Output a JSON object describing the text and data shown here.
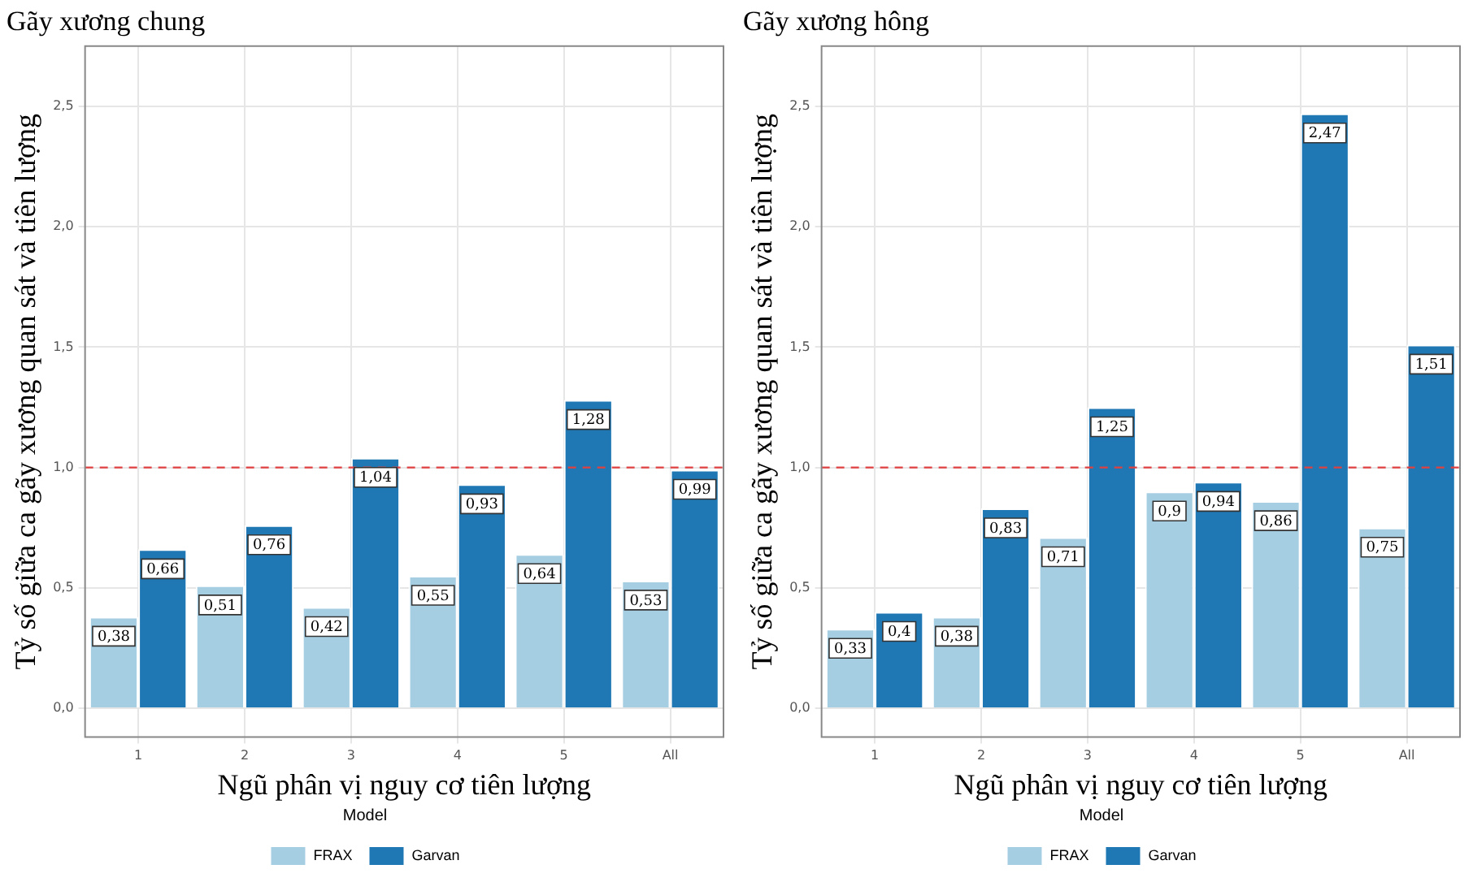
{
  "chart_data": [
    {
      "type": "bar",
      "title": "Gãy xương chung",
      "xlabel": "Ngũ phân vị nguy cơ tiên lượng",
      "ylabel": "Tỷ số giữa ca gãy xương quan sát và tiên lượng",
      "legend_title": "Model",
      "categories": [
        "1",
        "2",
        "3",
        "4",
        "5",
        "All"
      ],
      "series": [
        {
          "name": "FRAX",
          "color": "#a6cee3",
          "values": [
            0.38,
            0.51,
            0.42,
            0.55,
            0.64,
            0.53
          ],
          "value_labels": [
            "0,38",
            "0,51",
            "0,42",
            "0,55",
            "0,64",
            "0,53"
          ]
        },
        {
          "name": "Garvan",
          "color": "#1f78b4",
          "values": [
            0.66,
            0.76,
            1.04,
            0.93,
            1.28,
            0.99
          ],
          "value_labels": [
            "0,66",
            "0,76",
            "1,04",
            "0,93",
            "1,28",
            "0,99"
          ]
        }
      ],
      "ylim": [
        -0.12,
        2.75
      ],
      "yticks": [
        {
          "value": 0,
          "label": "0,0"
        },
        {
          "value": 0.5,
          "label": "0,5"
        },
        {
          "value": 1,
          "label": "1,0"
        },
        {
          "value": 1.5,
          "label": "1,5"
        },
        {
          "value": 2,
          "label": "2,0"
        },
        {
          "value": 2.5,
          "label": "2,5"
        }
      ],
      "ref_lines": [
        {
          "axis": "y",
          "value": 1,
          "color": "#e04040",
          "line_style": "dashed"
        }
      ],
      "grid": true,
      "legend": "bottom"
    },
    {
      "type": "bar",
      "title": "Gãy xương hông",
      "xlabel": "Ngũ phân vị nguy cơ tiên lượng",
      "ylabel": "Tỷ số giữa ca gãy xương quan sát và tiên lượng",
      "legend_title": "Model",
      "categories": [
        "1",
        "2",
        "3",
        "4",
        "5",
        "All"
      ],
      "series": [
        {
          "name": "FRAX",
          "color": "#a6cee3",
          "values": [
            0.33,
            0.38,
            0.71,
            0.9,
            0.86,
            0.75
          ],
          "value_labels": [
            "0,33",
            "0,38",
            "0,71",
            "0,9",
            "0,86",
            "0,75"
          ]
        },
        {
          "name": "Garvan",
          "color": "#1f78b4",
          "values": [
            0.4,
            0.83,
            1.25,
            0.94,
            2.47,
            1.51
          ],
          "value_labels": [
            "0,4",
            "0,83",
            "1,25",
            "0,94",
            "2,47",
            "1,51"
          ]
        }
      ],
      "ylim": [
        -0.12,
        2.75
      ],
      "yticks": [
        {
          "value": 0,
          "label": "0,0"
        },
        {
          "value": 0.5,
          "label": "0,5"
        },
        {
          "value": 1,
          "label": "1,0"
        },
        {
          "value": 1.5,
          "label": "1,5"
        },
        {
          "value": 2,
          "label": "2,0"
        },
        {
          "value": 2.5,
          "label": "2,5"
        }
      ],
      "ref_lines": [
        {
          "axis": "y",
          "value": 1,
          "color": "#e04040",
          "line_style": "dashed"
        }
      ],
      "grid": true,
      "legend": "bottom"
    }
  ]
}
